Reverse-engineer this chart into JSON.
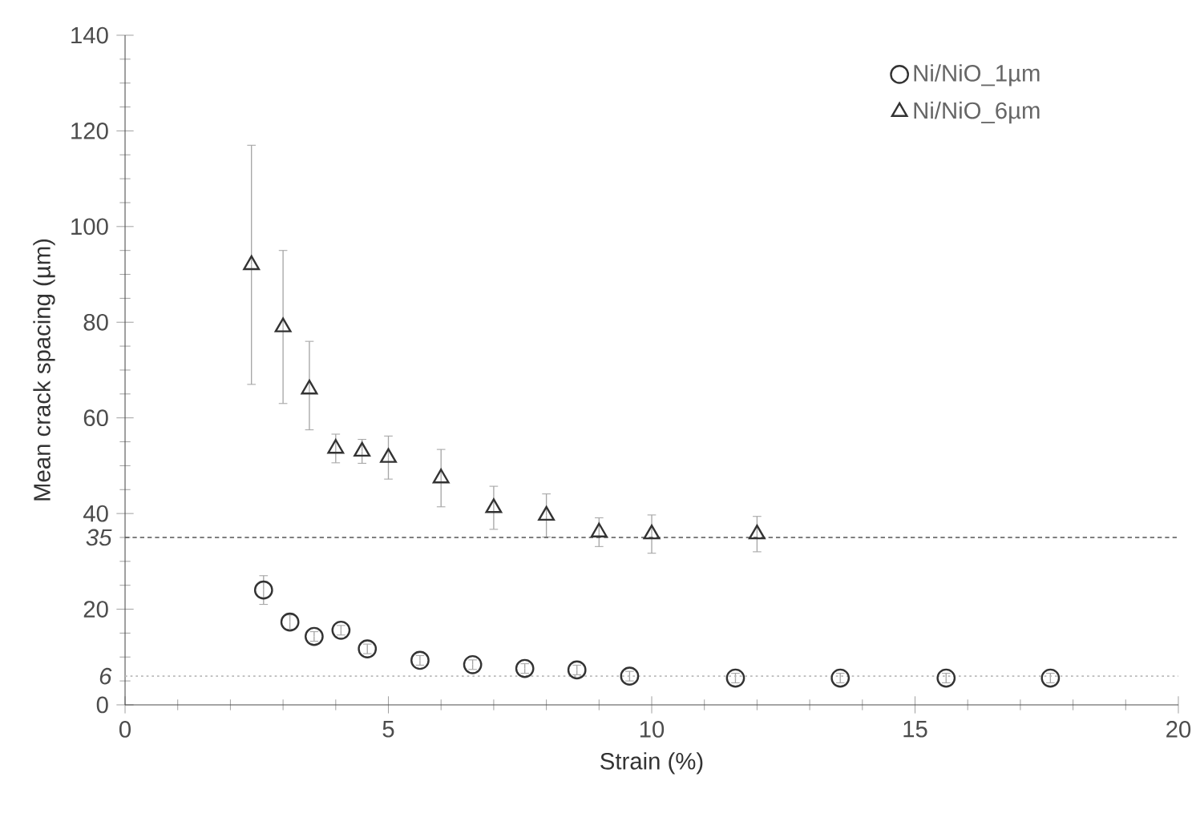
{
  "chart_data": {
    "type": "scatter",
    "xlabel": "Strain (%)",
    "ylabel": "Mean crack spacing (µm)",
    "xlim": [
      0,
      20
    ],
    "ylim": [
      0,
      140
    ],
    "xticks": [
      0,
      5,
      10,
      15,
      20
    ],
    "yticks": [
      0,
      20,
      40,
      60,
      80,
      100,
      120,
      140
    ],
    "grid": false,
    "legend": "top right",
    "series": [
      {
        "name": "Ni/NiO_1µm",
        "color": "#333333",
        "marker": "circle",
        "x": [
          2.63,
          3.13,
          3.59,
          4.1,
          4.6,
          5.6,
          6.6,
          7.59,
          8.58,
          9.58,
          11.59,
          13.58,
          15.59,
          17.57
        ],
        "values": [
          24,
          17.3,
          14.3,
          15.6,
          11.7,
          9.3,
          8.4,
          7.6,
          7.3,
          6,
          5.6,
          5.6,
          5.6,
          5.6
        ],
        "errors": [
          3,
          1.5,
          1,
          1,
          1,
          1,
          1,
          1,
          1,
          1,
          1,
          1,
          1,
          1
        ]
      },
      {
        "name": "Ni/NiO_6µm",
        "color": "#333333",
        "marker": "triangle",
        "x": [
          2.4,
          3.0,
          3.5,
          4.0,
          4.5,
          5.0,
          6.0,
          7.0,
          8.0,
          9.0,
          10.0,
          12.0
        ],
        "values": [
          92,
          79,
          66,
          53.6,
          53,
          51.7,
          47.4,
          41.2,
          39.6,
          36.1,
          35.7,
          35.7
        ],
        "errors": [
          [
            67,
            117
          ],
          [
            63,
            95
          ],
          [
            57.5,
            76
          ],
          3,
          2.5,
          4.5,
          6,
          4.5,
          4.5,
          3,
          4,
          3.7
        ]
      }
    ],
    "ref_lines": [
      {
        "axis": "y",
        "value": 35,
        "label": "35",
        "color": "#555555",
        "line_style": "dashed"
      },
      {
        "axis": "y",
        "value": 6,
        "label": "6",
        "color": "#bbbbbb",
        "line_style": "dotted"
      }
    ]
  }
}
